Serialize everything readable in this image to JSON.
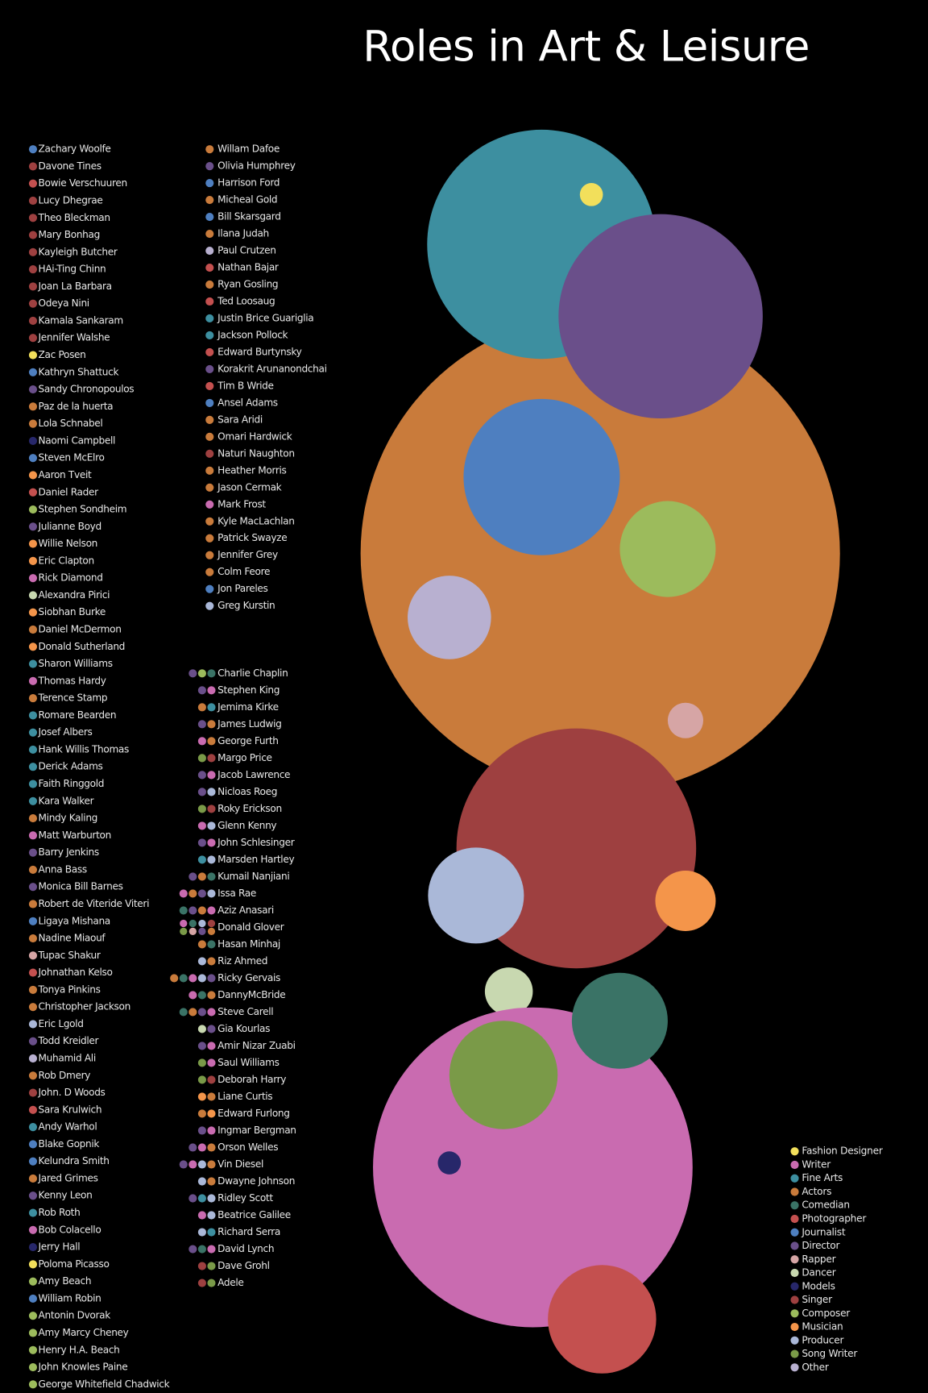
{
  "title": "Roles in Art & Leisure",
  "legend": [
    {
      "name": "Fashion Designer",
      "color": "#f2df5b"
    },
    {
      "name": "Writer",
      "color": "#c96bb0"
    },
    {
      "name": "Fine Arts",
      "color": "#3d8fa0"
    },
    {
      "name": "Actors",
      "color": "#c97b3b"
    },
    {
      "name": "Comedian",
      "color": "#3a7366"
    },
    {
      "name": "Photographer",
      "color": "#c4504f"
    },
    {
      "name": "Journalist",
      "color": "#4e7fc0"
    },
    {
      "name": "Director",
      "color": "#6a4f8a"
    },
    {
      "name": "Rapper",
      "color": "#d6a5a5"
    },
    {
      "name": "Dancer",
      "color": "#c8d8b0"
    },
    {
      "name": "Models",
      "color": "#27276a"
    },
    {
      "name": "Singer",
      "color": "#9e4040"
    },
    {
      "name": "Composer",
      "color": "#9cbb5c"
    },
    {
      "name": "Musician",
      "color": "#f4954a"
    },
    {
      "name": "Producer",
      "color": "#aab8d8"
    },
    {
      "name": "Song Writer",
      "color": "#7a9a48"
    },
    {
      "name": "Other",
      "color": "#b8b0d0"
    }
  ],
  "people": {
    "column_1": [
      {
        "name": "Zachary Woolfe",
        "colors": [
          "#4e7fc0"
        ]
      },
      {
        "name": "Davone Tines",
        "colors": [
          "#9e4040"
        ]
      },
      {
        "name": "Bowie Verschuuren",
        "colors": [
          "#c4504f"
        ]
      },
      {
        "name": "Lucy Dhegrae",
        "colors": [
          "#9e4040"
        ]
      },
      {
        "name": "Theo Bleckman",
        "colors": [
          "#9e4040"
        ]
      },
      {
        "name": "Mary Bonhag",
        "colors": [
          "#9e4040"
        ]
      },
      {
        "name": "Kayleigh Butcher",
        "colors": [
          "#9e4040"
        ]
      },
      {
        "name": "HAi-Ting Chinn",
        "colors": [
          "#9e4040"
        ]
      },
      {
        "name": "Joan La Barbara",
        "colors": [
          "#9e4040"
        ]
      },
      {
        "name": "Odeya Nini",
        "colors": [
          "#9e4040"
        ]
      },
      {
        "name": "Kamala Sankaram",
        "colors": [
          "#9e4040"
        ]
      },
      {
        "name": "Jennifer Walshe",
        "colors": [
          "#9e4040"
        ]
      },
      {
        "name": "Zac Posen",
        "colors": [
          "#f2df5b"
        ]
      },
      {
        "name": "Kathryn Shattuck",
        "colors": [
          "#4e7fc0"
        ]
      },
      {
        "name": "Sandy Chronopoulos",
        "colors": [
          "#6a4f8a"
        ]
      },
      {
        "name": "Paz de la huerta",
        "colors": [
          "#c97b3b"
        ]
      },
      {
        "name": "Lola Schnabel",
        "colors": [
          "#c97b3b"
        ]
      },
      {
        "name": "Naomi Campbell",
        "colors": [
          "#27276a"
        ]
      },
      {
        "name": "Steven McElro",
        "colors": [
          "#4e7fc0"
        ]
      },
      {
        "name": "Aaron Tveit",
        "colors": [
          "#f4954a"
        ]
      },
      {
        "name": "Daniel Rader",
        "colors": [
          "#c4504f"
        ]
      },
      {
        "name": "Stephen Sondheim",
        "colors": [
          "#9cbb5c"
        ]
      },
      {
        "name": "Julianne Boyd",
        "colors": [
          "#6a4f8a"
        ]
      },
      {
        "name": "Willie Nelson",
        "colors": [
          "#f4954a"
        ]
      },
      {
        "name": "Eric Clapton",
        "colors": [
          "#f4954a"
        ]
      },
      {
        "name": "Rick Diamond",
        "colors": [
          "#c96bb0"
        ]
      },
      {
        "name": "Alexandra Pirici",
        "colors": [
          "#c8d8b0"
        ]
      },
      {
        "name": "Siobhan Burke",
        "colors": [
          "#f4954a"
        ]
      },
      {
        "name": "Daniel McDermon",
        "colors": [
          "#c97b3b"
        ]
      },
      {
        "name": "Donald Sutherland",
        "colors": [
          "#f4954a"
        ]
      },
      {
        "name": "Sharon Williams",
        "colors": [
          "#3d8fa0"
        ]
      },
      {
        "name": "Thomas Hardy",
        "colors": [
          "#c96bb0"
        ]
      },
      {
        "name": "Terence Stamp",
        "colors": [
          "#c97b3b"
        ]
      },
      {
        "name": "Romare Bearden",
        "colors": [
          "#3d8fa0"
        ]
      },
      {
        "name": "Josef Albers",
        "colors": [
          "#3d8fa0"
        ]
      },
      {
        "name": "Hank Willis Thomas",
        "colors": [
          "#3d8fa0"
        ]
      },
      {
        "name": "Derick Adams",
        "colors": [
          "#3d8fa0"
        ]
      },
      {
        "name": "Faith Ringgold",
        "colors": [
          "#3d8fa0"
        ]
      },
      {
        "name": "Kara Walker",
        "colors": [
          "#3d8fa0"
        ]
      },
      {
        "name": "Mindy Kaling",
        "colors": [
          "#c97b3b"
        ]
      },
      {
        "name": "Matt Warburton",
        "colors": [
          "#c96bb0"
        ]
      },
      {
        "name": "Barry Jenkins",
        "colors": [
          "#6a4f8a"
        ]
      },
      {
        "name": "Anna Bass",
        "colors": [
          "#c97b3b"
        ]
      },
      {
        "name": "Monica Bill Barnes",
        "colors": [
          "#6a4f8a"
        ]
      },
      {
        "name": "Robert de Viteride Viteri",
        "colors": [
          "#c97b3b"
        ]
      },
      {
        "name": "Ligaya Mishana",
        "colors": [
          "#4e7fc0"
        ]
      },
      {
        "name": "Nadine Miaouf",
        "colors": [
          "#c97b3b"
        ]
      },
      {
        "name": "Tupac Shakur",
        "colors": [
          "#d6a5a5"
        ]
      },
      {
        "name": "Johnathan Kelso",
        "colors": [
          "#c4504f"
        ]
      },
      {
        "name": "Tonya Pinkins",
        "colors": [
          "#c97b3b"
        ]
      },
      {
        "name": "Christopher Jackson",
        "colors": [
          "#c97b3b"
        ]
      },
      {
        "name": "Eric Lgold",
        "colors": [
          "#aab8d8"
        ]
      },
      {
        "name": "Todd Kreidler",
        "colors": [
          "#6a4f8a"
        ]
      },
      {
        "name": "Muhamid Ali",
        "colors": [
          "#b8b0d0"
        ]
      },
      {
        "name": "Rob Dmery",
        "colors": [
          "#c97b3b"
        ]
      },
      {
        "name": "John. D Woods",
        "colors": [
          "#9e4040"
        ]
      },
      {
        "name": "Sara Krulwich",
        "colors": [
          "#c4504f"
        ]
      },
      {
        "name": "Andy Warhol",
        "colors": [
          "#3d8fa0"
        ]
      },
      {
        "name": "Blake Gopnik",
        "colors": [
          "#4e7fc0"
        ]
      },
      {
        "name": "Kelundra Smith",
        "colors": [
          "#4e7fc0"
        ]
      },
      {
        "name": "Jared Grimes",
        "colors": [
          "#c97b3b"
        ]
      },
      {
        "name": "Kenny Leon",
        "colors": [
          "#6a4f8a"
        ]
      },
      {
        "name": "Rob Roth",
        "colors": [
          "#3d8fa0"
        ]
      },
      {
        "name": "Bob Colacello",
        "colors": [
          "#c96bb0"
        ]
      },
      {
        "name": "Jerry Hall",
        "colors": [
          "#27276a"
        ]
      },
      {
        "name": "Poloma Picasso",
        "colors": [
          "#f2df5b"
        ]
      },
      {
        "name": "Amy Beach",
        "colors": [
          "#9cbb5c"
        ]
      },
      {
        "name": "William Robin",
        "colors": [
          "#4e7fc0"
        ]
      },
      {
        "name": "Antonin Dvorak",
        "colors": [
          "#9cbb5c"
        ]
      },
      {
        "name": "Amy Marcy Cheney",
        "colors": [
          "#9cbb5c"
        ]
      },
      {
        "name": "Henry H.A. Beach",
        "colors": [
          "#9cbb5c"
        ]
      },
      {
        "name": "John Knowles Paine",
        "colors": [
          "#9cbb5c"
        ]
      },
      {
        "name": "George Whitefield Chadwick",
        "colors": [
          "#9cbb5c"
        ]
      }
    ],
    "column_2": [
      {
        "name": "Willam Dafoe",
        "colors": [
          "#c97b3b"
        ]
      },
      {
        "name": "Olivia Humphrey",
        "colors": [
          "#6a4f8a"
        ]
      },
      {
        "name": "Harrison Ford",
        "colors": [
          "#4e7fc0"
        ]
      },
      {
        "name": "Micheal Gold",
        "colors": [
          "#c97b3b"
        ]
      },
      {
        "name": "Bill Skarsgard",
        "colors": [
          "#4e7fc0"
        ]
      },
      {
        "name": "Ilana Judah",
        "colors": [
          "#c97b3b"
        ]
      },
      {
        "name": "Paul Crutzen",
        "colors": [
          "#b8b0d0"
        ]
      },
      {
        "name": "Nathan Bajar",
        "colors": [
          "#c4504f"
        ]
      },
      {
        "name": "Ryan Gosling",
        "colors": [
          "#c97b3b"
        ]
      },
      {
        "name": "Ted Loosaug",
        "colors": [
          "#c4504f"
        ]
      },
      {
        "name": "Justin Brice Guariglia",
        "colors": [
          "#3d8fa0"
        ]
      },
      {
        "name": "Jackson Pollock",
        "colors": [
          "#3d8fa0"
        ]
      },
      {
        "name": "Edward Burtynsky",
        "colors": [
          "#c4504f"
        ]
      },
      {
        "name": "Korakrit Arunanondchai",
        "colors": [
          "#6a4f8a"
        ]
      },
      {
        "name": "Tim B Wride",
        "colors": [
          "#c4504f"
        ]
      },
      {
        "name": "Ansel Adams",
        "colors": [
          "#4e7fc0"
        ]
      },
      {
        "name": "Sara Aridi",
        "colors": [
          "#c97b3b"
        ]
      },
      {
        "name": "Omari Hardwick",
        "colors": [
          "#c97b3b"
        ]
      },
      {
        "name": "Naturi Naughton",
        "colors": [
          "#9e4040"
        ]
      },
      {
        "name": "Heather Morris",
        "colors": [
          "#c97b3b"
        ]
      },
      {
        "name": "Jason Cermak",
        "colors": [
          "#c97b3b"
        ]
      },
      {
        "name": "Mark Frost",
        "colors": [
          "#c96bb0"
        ]
      },
      {
        "name": "Kyle MacLachlan",
        "colors": [
          "#c97b3b"
        ]
      },
      {
        "name": "Patrick Swayze",
        "colors": [
          "#c97b3b"
        ]
      },
      {
        "name": "Jennifer Grey",
        "colors": [
          "#c97b3b"
        ]
      },
      {
        "name": "Colm Feore",
        "colors": [
          "#c97b3b"
        ]
      },
      {
        "name": "Jon Pareles",
        "colors": [
          "#4e7fc0"
        ]
      },
      {
        "name": "Greg Kurstin",
        "colors": [
          "#aab8d8"
        ]
      }
    ],
    "column_3": [
      {
        "name": "Charlie Chaplin",
        "colors": [
          "#6a4f8a",
          "#9cbb5c",
          "#3a7366"
        ]
      },
      {
        "name": "Stephen King",
        "colors": [
          "#6a4f8a",
          "#c96bb0"
        ]
      },
      {
        "name": "Jemima Kirke",
        "colors": [
          "#c97b3b",
          "#3d8fa0"
        ]
      },
      {
        "name": "James Ludwig",
        "colors": [
          "#6a4f8a",
          "#c97b3b"
        ]
      },
      {
        "name": "George Furth",
        "colors": [
          "#c96bb0",
          "#c97b3b"
        ]
      },
      {
        "name": "Margo Price",
        "colors": [
          "#7a9a48",
          "#9e4040"
        ]
      },
      {
        "name": "Jacob Lawrence",
        "colors": [
          "#6a4f8a",
          "#c96bb0"
        ]
      },
      {
        "name": "Nicloas Roeg",
        "colors": [
          "#6a4f8a",
          "#aab8d8"
        ]
      },
      {
        "name": "Roky Erickson",
        "colors": [
          "#7a9a48",
          "#9e4040"
        ]
      },
      {
        "name": "Glenn Kenny",
        "colors": [
          "#c96bb0",
          "#aab8d8"
        ]
      },
      {
        "name": "John Schlesinger",
        "colors": [
          "#6a4f8a",
          "#c96bb0"
        ]
      },
      {
        "name": "Marsden Hartley",
        "colors": [
          "#3d8fa0",
          "#aab8d8"
        ]
      },
      {
        "name": "Kumail Nanjiani",
        "colors": [
          "#6a4f8a",
          "#c97b3b",
          "#3a7366"
        ]
      },
      {
        "name": "Issa Rae",
        "colors": [
          "#c96bb0",
          "#c97b3b",
          "#6a4f8a",
          "#aab8d8"
        ]
      },
      {
        "name": "Aziz Anasari",
        "colors": [
          "#3a7366",
          "#6a4f8a",
          "#c97b3b",
          "#c96bb0"
        ]
      },
      {
        "name": "Donald Glover",
        "colors": [
          "#c96bb0",
          "#3a7366",
          "#aab8d8",
          "#9e4040",
          "#7a9a48",
          "#d6a5a5",
          "#6a4f8a",
          "#c97b3b"
        ]
      },
      {
        "name": "Hasan Minhaj",
        "colors": [
          "#c97b3b",
          "#3a7366"
        ]
      },
      {
        "name": "Riz Ahmed",
        "colors": [
          "#aab8d8",
          "#c97b3b"
        ]
      },
      {
        "name": "Ricky Gervais",
        "colors": [
          "#c97b3b",
          "#3a7366",
          "#c96bb0",
          "#aab8d8",
          "#6a4f8a"
        ]
      },
      {
        "name": "DannyMcBride",
        "colors": [
          "#c96bb0",
          "#3a7366",
          "#c97b3b"
        ]
      },
      {
        "name": "Steve Carell",
        "colors": [
          "#3a7366",
          "#c97b3b",
          "#6a4f8a",
          "#c96bb0"
        ]
      },
      {
        "name": "Gia Kourlas",
        "colors": [
          "#c8d8b0",
          "#6a4f8a"
        ]
      },
      {
        "name": "Amir Nizar Zuabi",
        "colors": [
          "#6a4f8a",
          "#c96bb0"
        ]
      },
      {
        "name": "Saul Williams",
        "colors": [
          "#7a9a48",
          "#c96bb0"
        ]
      },
      {
        "name": "Deborah Harry",
        "colors": [
          "#7a9a48",
          "#9e4040"
        ]
      },
      {
        "name": "Liane Curtis",
        "colors": [
          "#f4954a",
          "#c97b3b"
        ]
      },
      {
        "name": "Edward Furlong",
        "colors": [
          "#c97b3b",
          "#f4954a"
        ]
      },
      {
        "name": "Ingmar Bergman",
        "colors": [
          "#6a4f8a",
          "#c96bb0"
        ]
      },
      {
        "name": "Orson Welles",
        "colors": [
          "#6a4f8a",
          "#c96bb0",
          "#c97b3b"
        ]
      },
      {
        "name": "Vin Diesel",
        "colors": [
          "#6a4f8a",
          "#c96bb0",
          "#aab8d8",
          "#c97b3b"
        ]
      },
      {
        "name": "Dwayne Johnson",
        "colors": [
          "#aab8d8",
          "#c97b3b"
        ]
      },
      {
        "name": "Ridley Scott",
        "colors": [
          "#6a4f8a",
          "#3d8fa0",
          "#aab8d8"
        ]
      },
      {
        "name": "Beatrice Galilee",
        "colors": [
          "#c96bb0",
          "#aab8d8"
        ]
      },
      {
        "name": "Richard Serra",
        "colors": [
          "#aab8d8",
          "#3d8fa0"
        ]
      },
      {
        "name": "David Lynch",
        "colors": [
          "#6a4f8a",
          "#3a7366",
          "#c96bb0"
        ]
      },
      {
        "name": "Dave Grohl",
        "colors": [
          "#9e4040",
          "#7a9a48"
        ]
      },
      {
        "name": "Adele",
        "colors": [
          "#9e4040",
          "#7a9a48"
        ]
      }
    ]
  }
}
